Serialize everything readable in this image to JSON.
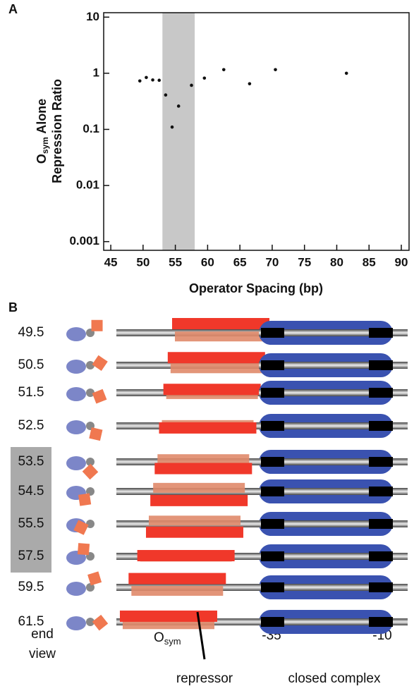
{
  "chart_data": {
    "type": "scatter",
    "panel_label": "A",
    "x": [
      49.5,
      50.5,
      51.5,
      52.5,
      53.5,
      54.5,
      55.5,
      57.5,
      59.5,
      62.5,
      66.5,
      70.5,
      81.5
    ],
    "values": [
      0.73,
      0.84,
      0.76,
      0.75,
      0.41,
      0.11,
      0.26,
      0.61,
      0.82,
      1.16,
      0.65,
      1.16,
      1.0
    ],
    "color": "#111111",
    "xlim": [
      43.9,
      91.2
    ],
    "xticks": [
      45,
      50,
      55,
      60,
      65,
      70,
      75,
      80,
      85,
      90
    ],
    "ylim": [
      0.0007,
      12
    ],
    "yticks": [
      0.001,
      0.01,
      0.1,
      1,
      10
    ],
    "log_y": true,
    "shade": [
      53,
      58
    ],
    "shade_color": "#c8c8c8",
    "xlabel": "Operator Spacing (bp)",
    "ylabel": {
      "main": "O",
      "sub": "sym",
      "rest": " Alone",
      "line2": "Repression Ratio"
    }
  },
  "panel_b": {
    "panel_label": "B",
    "rows": [
      "49.5",
      "50.5",
      "51.5",
      "52.5",
      "53.5",
      "54.5",
      "55.5",
      "57.5",
      "59.5",
      "61.5"
    ],
    "end_label": "end",
    "view_label": "view",
    "osym": {
      "main": "O",
      "sub": "sym"
    },
    "repressor_label": "repressor",
    "minus35": "-35",
    "minus10": "-10",
    "complex_label": "closed complex"
  }
}
